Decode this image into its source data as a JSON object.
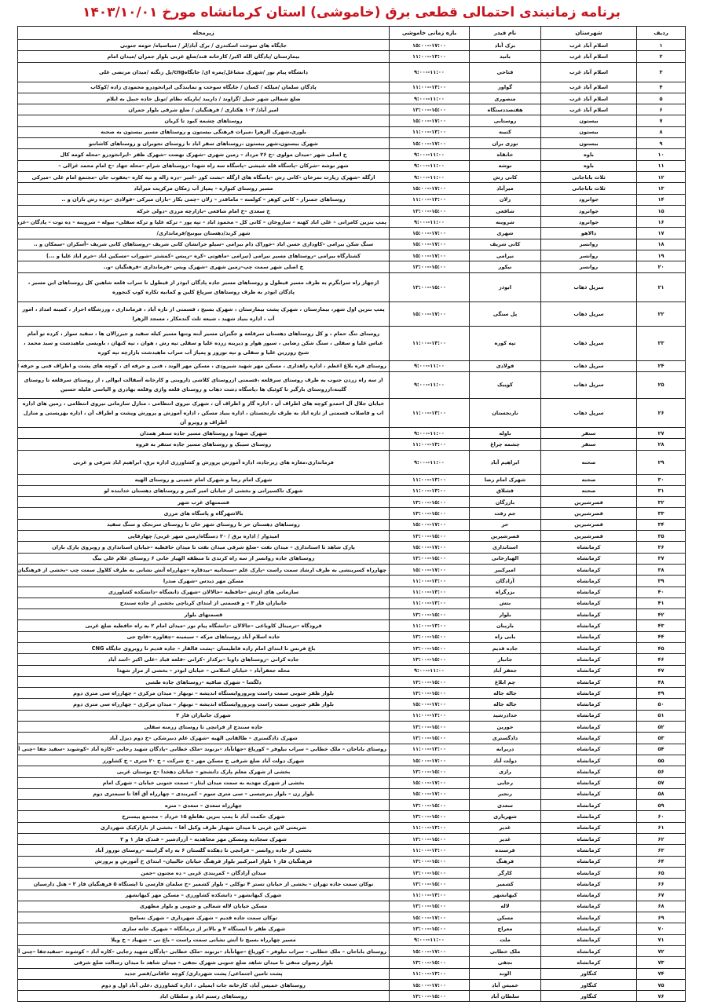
{
  "title": "برنامه زمانبندی احتمالی قطعی برق (خاموشی) استان کرمانشاه مورخ ۱۴۰۳/۱۰/۰۱",
  "columns": {
    "row": "ردیف",
    "county": "شهرستان",
    "feeder": "نام فیدر",
    "time": "بازه زمانی خاموشی",
    "area": "زیرمحله"
  },
  "title_color": "#c8141e",
  "rows": [
    [
      "۱",
      "اسلام آباد غرب",
      "برک آباد",
      "۱۵:۰۰--۱۷:۰۰",
      "جایگاه های سوخت اسکندری / برک آباد/لر / سیاسیاه/ حومه جنوبی"
    ],
    [
      "۲",
      "اسلام آباد غرب",
      "بانید",
      "۱۱:۰۰--۱۳:۰۰",
      "بیمارستان /پادگان الله اکبر/ کارخانه قند/ضلع غربی بلوار جمران /میدان امام"
    ],
    [
      "۳",
      "اسلام آباد غرب",
      "فتاحی",
      "۹:۰۰--۱۱:۰۰",
      "دانشگاه پیام نور /شهرک مشاغل/پمره ای/ جایگاهcng/پل زنگنه /میدان مرتضی علی"
    ],
    [
      "۴",
      "اسلام آباد غرب",
      "گواور",
      "۱۱:۰۰--۱۳:۰۰",
      "پادگان سلمان /میلکه / کسان / جایگاه سوخت و نمایندگی ایرانخودرو محمودی زاده /کوکاب"
    ],
    [
      "۵",
      "اسلام آباد غرب",
      "منصوری",
      "۹:۰۰--۱۱:۰۰",
      "ضلع شمالی شهر حبیل /گراوند / داربید /باریکه نظام /تونل جاده حبیل به ایلام"
    ],
    [
      "۶",
      "اسلام آباد غرب",
      "هفتصددستگاه",
      "۱۳:۰۰--۱۵:۰۰",
      "امیر آباد/ ۱۰۲ هکتاری / فرهنگیان / ضلع شرقی بلوار جمران"
    ],
    [
      "۷",
      "بیستون",
      "روستایی",
      "۱۵:۰۰--۱۷:۰۰",
      "روستاهای چشمه کبود تا کریان"
    ],
    [
      "۸",
      "بیستون",
      "کتیبه",
      "۱۱:۰۰--۱۳:۰۰",
      "بلوری،شهرک الزهرا ،میراث فرهنگی بیستون و روستاهای مسیر بیستون به صحنه"
    ],
    [
      "۹",
      "بیستون",
      "توزی بران",
      "۱۵:۰۰--۱۷:۰۰",
      "شهرک بیستون،شهر بیستون ،روستاهای سفر اباد تا روستای نجوبران و روستاهای کاشانتو"
    ],
    [
      "۱۰",
      "باوه",
      "خانقاه",
      "۹:۰۰--۱۱:۰۰",
      "خ اصلی شهر –میدان مولوی –خ ۲۶ مرداد – زمین شهری –شهرک نهضت –شهرک ظفر –ایرانخودرو –محله کومه کال"
    ],
    [
      "۱۱",
      "باوه",
      "نوشه",
      "۹:۰۰--۱۱:۰۰",
      "شهر نوشه –شرکان –پاسگاه قله شیشی –پاسگاه سه راه شهدا –روستاهای شرام –محله جهاد –خ امام محمد غزالی –"
    ],
    [
      "۱۲",
      "ثلاث باباجانی",
      "کانی رش",
      "۹:۰۰--۱۱:۰۰",
      "ازگله –شهرک زیارت تمرخان –کانی رش –پاسگاه های ازگله –بشت کور –امیر –دره زاله و تپه کاره –یعقوب جان –مجتمع امام علی –میرکی"
    ],
    [
      "۱۳",
      "ثلاث باباجانی",
      "میرآباد",
      "۱۵:۰۰--۱۷:۰۰",
      "مسیر روستای کیواره – پمپاژ آب زمکان مرکزیت میرآباد"
    ],
    [
      "۱۴",
      "جوانرود",
      "زلان",
      "۱۱:۰۰--۱۳:۰۰",
      "روستاهای جمنزار – کانی کوهر – کولسه – ماماقدر – زلان –چمی بکار –بازان میرکی –فولادی –برده رش بازان و .."
    ],
    [
      "۱۵",
      "جوانرود",
      "شافعی",
      "۱۳:۰۰--۱۵:۰۰",
      "خ سعدی –خ امام شافعی –بازارچه مرزی –دولی خرکه"
    ],
    [
      "۱۶",
      "جوانرود",
      "شروینه",
      "۹:۰۰--۱۱:۰۰",
      "پمپ بنزین کامرانی – علی اباد کهنه – ساروخان – کانی کل – محمود اباد – تپه پور – ترکه علیا و ترکه سفلی– بیوله – شروینه – ده توت – پادگان –عزیز اباد"
    ],
    [
      "۱۷",
      "دالاهو",
      "شهری",
      "۱۵:۰۰--۱۷:۰۰",
      "شهر کرند/دهستان بیونیج/فرمانداری/"
    ],
    [
      "۱۸",
      "روانسر",
      "کانی شریف",
      "۱۵:۰۰--۱۷:۰۰",
      "سنگ شکن بیرامی –کاوداری حسن اباد –خوراک دام بیرامی –سیلو جرانشان کانی شریف –روستاهای کانی شریف –آسکران –سمکان و .."
    ],
    [
      "۱۹",
      "روانسر",
      "نیرامی",
      "۱۵:۰۰--۱۷:۰۰",
      "کشتارگاه بیرامی –روستاهای مسیر نیرامی (تیرامی –ماهوتی –کره –ریبس –کمشتر –شوراب –مسکین اباد –خرم اباد علیا و ...)"
    ],
    [
      "۲۰",
      "روانسر",
      "نیکور",
      "۱۳:۰۰--۱۵:۰۰",
      "خ اصلی شهر سمت چپ–زمین شهری –شهرک ویس –فرمانداری –فرهنگیان –و.."
    ],
    [
      "۲۱",
      "سرپل ذهاب",
      "ابوذر",
      "۱۳:۰۰--۱۵:۰۰",
      "ازچهار راه سرابگرم به طرف مسیر قیطول و روستاهای مسیر جاده پادگان ابوذر از قیطول تا سراب قلعه شاهین کل روستاهای این مسیر ، پادگان ابوذر به طرف روستاهای سرپاغ کلین و کمانیه تکاره کوپ کنجوره"
    ],
    [
      "۲۲",
      "سرپل ذهاب",
      "پل سنگی",
      "۱۵:۰۰--۱۷:۰۰",
      "پمپ بنزین اول شهر، بیمارستان ، شهرک پشت بیمارستان ، شهرک بسیج ، قسمتی از تازه آباد ، فرمانداری ، ورزشگاه احرار ، کمیته امداد ، امور آب ، اداره بنیاد شهید ، شیعه ثلث گندمکار ، مسجد الزهرا"
    ],
    [
      "۲۳",
      "سرپل ذهاب",
      "تپه کوره",
      "۱۱:۰۰--۱۳:۰۰",
      "روستای تنگ حمام ، و کل روستاهای دهستان سرقلعه و جگیران مسیر آبته وتنها مسیر کیله سفید و جیرزالان ها ، سفید سوار ، کرده تو آمام عباس علیا و سفلی ، سنگ شکن رضایی ، سیور هوار و دیرینه زرده علیا و سفلی تپه رش ، هوان ، تپه کنهان ، باویسی ماهیدشت و سید محمد ، شیخ رورزین علیا و سفلی و تپه نوروز و پمپاژ آب سراب ماهیدشت بازارچه تپه کوره"
    ],
    [
      "۲۴",
      "سرپل ذهاب",
      "فولادی",
      "۹:۰۰--۱۱:۰۰",
      "روستای قره بلاغ اعظم ، اداره راهداری ، مسکن مهر شهید شیرودی ، مسکن مهر الوند ، فنی و حرفه ای ، کوچه های پشت و اطراف فنی و حرفه ای ، شهرک امام ،کل محله فولادی ،"
    ],
    [
      "۲۵",
      "سرپل ذهاب",
      "کوییک",
      "۹:۰۰--۱۱:۰۰",
      "از سه راه زردن جنوب به طرف روستای سرقلعه ،قسمتی ازروستای کلاشی داروینی و کارخانه آسفالت ابوالی ، از روستای سرقلعه تا روستای گلینه،ازروستای بازگیر تا کوئیک ها ،پاسگاه دشت ذهاب و روستای قلعه واژی وقلعه بهادری و الیاسی قلیله حسین"
    ],
    [
      "۲۶",
      "سرپل ذهاب",
      "نارنجستان",
      "۱۱:۰۰--۱۳:۰۰",
      "خیابان جلال آل احمدو کوچه های اطراف آن ، اداره گاز و اطراف آن ، شهرک نیروی انتظامی ، منازل سازمانی نیروی انتظامی ، زمین های اداره اب و فاضلاب قسمتی از تازه اباد به طرف نارنجستان ، اداره بنیاد مسکن ، اداره آموزش و پرورش وپشت و اطراف آن ، اداره بهزیستی و منازل اطراف و روبرو آن"
    ],
    [
      "۲۷",
      "سنقر",
      "باوله",
      "۹:۰۰--۱۱:۰۰",
      "شهرک شهدا و روستاهای مسیر جاده سنقر همدان"
    ],
    [
      "۲۸",
      "سنقر",
      "چشمه چراغ",
      "۱۱:۰۰--۱۳:۰۰",
      "روستای سیبک و روستاهای مسیر جاده سنقر به قروه"
    ],
    [
      "۲۹",
      "صحنه",
      "ابراهیم آباد",
      "۹:۰۰--۱۱:۰۰",
      "فرمانداری،مغازه های زیرجاده، اداره آموزش پرورش و کشاورزی اداره برق، ابراهیم اباد شرقی و غربی"
    ],
    [
      "۳۰",
      "صحنه",
      "شهرک امام رضا",
      "۱۱:۰۰--۱۳:۰۰",
      "شهرک امام رضا و شهرک امام خمینی و روستای الهیه"
    ],
    [
      "۳۱",
      "صحنه",
      "قشلاق",
      "۱۱:۰۰--۱۳:۰۰",
      "شهرک تاکسیرانی و بخشی از خیابان امیر کبیر و روستاهای دهستان خدابنده لو"
    ],
    [
      "۳۲",
      "قصرشیرین",
      "بازرگان",
      "۱۳:۰۰--۱۵:۰۰",
      "قسمتهای غرب شهر"
    ],
    [
      "۳۳",
      "قصرشیرین",
      "جم رفت",
      "۱۳:۰۰--۱۵:۰۰",
      "بالاشهرگاه و پاسگاه های مرزی"
    ],
    [
      "۳۴",
      "قصرشیرین",
      "حر",
      "۱۵:۰۰--۱۷:۰۰",
      "روستاهای دهستان حر تا روستای شهر خان تا روستای سرنجک و سنگ سفید"
    ],
    [
      "۳۵",
      "قصرشیرین",
      "قصرشیرین",
      "۱۳:۰۰--۱۵:۰۰",
      "امیدوار / اداره برق / ۲۰ دستگاه/زمین شهر غربی/ چهارقاپی"
    ],
    [
      "۳۶",
      "کرمانشاه",
      "استانداری",
      "۱۵:۰۰--۱۷:۰۰",
      "پارک شاهد تا استانداری – میدان نفت –ضلع شرقی میدان نفت تا میدان حافظیه –خیابان استانداری و روبروی پارک باران"
    ],
    [
      "۳۷",
      "کرمانشاه",
      "الهیارخانی",
      "۱۳:۰۰--۱۵:۰۰",
      "روستاهای جاده روانسر از سه راه کرندی تا منطقه الهیار خانی ۶ روستای غلام علی بیگ"
    ],
    [
      "۳۸",
      "کرمانشاه",
      "امیرکبیر",
      "۱۵:۰۰--۱۷:۰۰",
      "چهارراه کسرینشی به طرف ارشاد سمت راست –پارک علم –سبحانیه –بیدقاره –چهارراه آتش نشانی به طرف کلاول سمت چپ –بخشی از فرهنگیان فاز ۱"
    ],
    [
      "۳۹",
      "کرمانشاه",
      "آزادگان",
      "۱۱:۰۰--۱۳:۰۰",
      "مسکن مهر دیدس –شهرک صدرا"
    ],
    [
      "۴۰",
      "کرمانشاه",
      "بزرگراه",
      "۱۱:۰۰--۱۳:۰۰",
      "سازمانی های ارتش –حافظیه –جالالان –شهرک دانشگاه –دانشکده کشاورزی"
    ],
    [
      "۴۱",
      "کرمانشاه",
      "بتش",
      "۱۱:۰۰--۱۳:۰۰",
      "جانبازان فاز ۳ – و قسمتی از ابتدای کرناچی بخشی از جاده سنندج"
    ],
    [
      "۴۲",
      "کرمانشاه",
      "بلوار",
      "۱۳:۰۰--۱۵:۰۰",
      "قسمتهای بلوار"
    ],
    [
      "۴۳",
      "کرمانشاه",
      "باریبان",
      "۱۱:۰۰--۱۳:۰۰",
      "فرودگاه –ترمینال کاوباغی –جالالان –دانشگاه پیام نور –میدان امام ۲ به راه حافظیه ضلع غربی"
    ],
    [
      "۴۴",
      "کرمانشاه",
      "بابی راه",
      "۱۳:۰۰--۱۵:۰۰",
      "جاده اسلام آباد روستاهای مرکه – سیمینه –چفاوره –فاتح جی"
    ],
    [
      "۴۵",
      "کرمانشاه",
      "جاده قدیم",
      "۱۳:۰۰--۱۵:۰۰",
      "باغ فرنس تا ابتدای امام زاده فاطیسان –پشت قالقار – جاده قدیم تا روبروی جایگاه CNG"
    ],
    [
      "۴۶",
      "کرمانشاه",
      "جانباز",
      "۱۳:۰۰--۱۵:۰۰",
      "جاده کرانی –روستاهای داوبا –برکدار –کرانی –قلعه قباد –علی اکبر –اسد آباد"
    ],
    [
      "۴۷",
      "کرمانشاه",
      "جعفر آباد",
      "۹:۰۰--۱۱:۰۰",
      "محله جعفرآباد – خیابان اسلامی – خیابان ابوذر – بخشی از مزار شهدا"
    ],
    [
      "۴۸",
      "کرمانشاه",
      "چم ابلاغ",
      "۱۳:۰۰--۱۵:۰۰",
      "دلگشا – شهرک صافیه –روستاهای جاده طشی"
    ],
    [
      "۴۹",
      "کرمانشاه",
      "جاله جاله",
      "۱۳:۰۰--۱۵:۰۰",
      "بلوار ظفر جنوبی سمت راست وبروروایستگاه اندیشه – توبهار – میدان مرکزی – چهارراه سی متری دوم"
    ],
    [
      "۵۰",
      "کرمانشاه",
      "جاله جاله",
      "۱۵:۰۰--۱۷:۰۰",
      "بلوار ظفر جنوبی سمت راست وبروروایستگاه اندیشه – توبهار – میدان مرکزی – چهارراه سی متری دوم"
    ],
    [
      "۵۱",
      "کرمانشاه",
      "حدادرشید",
      "۱۱:۰۰--۱۳:۰۰",
      "شهرک جانبازان فاز ۳"
    ],
    [
      "۵۲",
      "کرمانشاه",
      "خورین",
      "۱۳:۰۰--۱۵:۰۰",
      "جاده سنندج از فرانچی تا روستای زرمنه سفلی"
    ],
    [
      "۵۳",
      "کرمانشاه",
      "دادگستری",
      "۱۳:۰۰--۱۵:۰۰",
      "شهرک دادگستری – طالقانی الهیه –شهرک علم دبیرشکی –خ دوم دیزل آباد"
    ],
    [
      "۵۴",
      "کرمانشاه",
      "دربرابه",
      "۱۱:۰۰--۱۳:۰۰",
      "روستای باباحان – ملک خطابی – سراب نیلوفر – کوریاغ –جهانآباد –بزنوند –ملک خطابی –پادگان شهید رجایی –کازه آباد –کوشوند –سفید جفا –چنی آباد"
    ],
    [
      "۵۵",
      "کرمانشاه",
      "دولت آباد",
      "۱۵:۰۰--۱۷:۰۰",
      "شهرک دولت آباد ضلع شرقی خ مسکن مهر – خ شرکت – خ ۲۰ متری – خ کشاورز"
    ],
    [
      "۵۶",
      "کرمانشاه",
      "رازی",
      "۱۳:۰۰--۱۵:۰۰",
      "بخشی از شهرک معلم پارک دانشجو – خیابان دهخدا –خ بوستان غربی"
    ],
    [
      "۵۷",
      "کرمانشاه",
      "رجایی",
      "۱۵:۰۰--۱۷:۰۰",
      "بخشی از شهرک مهدیه به سمت میدان ایثار – سمت جنوبی خیابان – شهرک امام"
    ],
    [
      "۵۸",
      "کرمانشاه",
      "رنجبر",
      "۱۵:۰۰--۱۷:۰۰",
      "بلوار زن – بلوار بیرجیسی – سی متری سوم – کمربندی – چهارراه آق آقا تا سیمتری دوم"
    ],
    [
      "۵۹",
      "کرمانشاه",
      "سعدی",
      "۱۳:۰۰--۱۵:۰۰",
      "چهارراه سعدی – سعدی – منزه"
    ],
    [
      "۶۰",
      "کرمانشاه",
      "شهریاری",
      "۱۳:۰۰--۱۵:۰۰",
      "شهرک حکمت آباد تا پمپ بنزین تقاطع ۱۵ خرداد – مجتمع بیسترخ"
    ],
    [
      "۶۱",
      "کرمانشاه",
      "غدیر",
      "۱۱:۰۰--۱۳:۰۰",
      "شریعتی لاین غربی تا میدان شهباز طرف وکیل آقا – بخشی از بازارکیک شهرداری"
    ],
    [
      "۶۲",
      "کرمانشاه",
      "غدیر",
      "۱۳:۰۰--۱۵:۰۰",
      "شهرک سجادیه ومسکن مهر مجاهدیه – آزرادشیر – قندک فاز ۱ و ۲"
    ],
    [
      "۶۳",
      "کرمانشاه",
      "فرسنده",
      "۱۱:۰۰--۱۳:۰۰",
      "بخشی از جاده روانسر – فرانچی تا دهکده گلستان ۶ به راه گرانیته –روستای نوروز آباد"
    ],
    [
      "۶۴",
      "کرمانشاه",
      "فرهنگ",
      "۱۳:۰۰--۱۵:۰۰",
      "فرهنگیان فاز ۱ بلوار امیرکبیر بلوار فرهنگ خیابان جالبیان– ابتدای خ آموزش و پرورش"
    ],
    [
      "۶۵",
      "کرمانشاه",
      "کارگر",
      "۱۳:۰۰--۱۵:۰۰",
      "میدان آزادگان – کمربندی غربی – ده مجنون –جمن"
    ],
    [
      "۶۶",
      "کرمانشاه",
      "کشمیر",
      "۱۳:۰۰--۱۵:۰۰",
      "توکان سمت جاده تهران – بخشی از خیابان تستر ۴ توکلی – بلوار کشمیر –خ سلمان فارسی تا ایستگاه ۵ فرهنگیان فاز ۲ – هتل دارسیان"
    ],
    [
      "۶۷",
      "کرمانشاه",
      "کیهانشهر",
      "۱۱:۰۰--۱۳:۰۰",
      "شهرک کیهانشهر – دانشکده کشاورزی – مسکن مهر کیهانشهر"
    ],
    [
      "۶۸",
      "کرمانشاه",
      "لاله",
      "۱۳:۰۰--۱۵:۰۰",
      "مسکن خیابان لاله شمالی و جنوبی و بلوار مطهری"
    ],
    [
      "۶۹",
      "کرمانشاه",
      "مسکن",
      "۱۵:۰۰--۱۷:۰۰",
      "توکان سمت جاده قدیم – شهرک شهرداری – شهرک تسامح"
    ],
    [
      "۷۰",
      "کرمانشاه",
      "معراج",
      "۱۳:۰۰--۱۵:۰۰",
      "شهرک ظفر تا ایستگاه ۲ و بالاتر از درمانگاه – شهرک خانه سازی"
    ],
    [
      "۷۱",
      "کرمانشاه",
      "ملت",
      "۹:۰۰--۱۱:۰۰",
      "مسیر چهارراه بسیج تا آتش نشانی سمت راست – باغ نی – شهیاد – خ ویلا"
    ],
    [
      "۷۲",
      "کرمانشاه",
      "ملک خطابی",
      "۱۵:۰۰--۱۷:۰۰",
      "روستای باباحان – ملک خطابی – سراب نیلوفر – کوریاغ –جهانآباد –بزنوند –ملک خطابی –پادگان شهید رجایی –کازه آباد – کوشوند –سفیدجفا –چنی آباد"
    ],
    [
      "۷۳",
      "کرمانشاه",
      "نجفی",
      "۱۳:۰۰--۱۵:۰۰",
      "بلوار رضوان منفی تا میدان شاهد ضلع جنوبی شهرک نجفی – میدان شاهد تا میدان رسالت ضلع شرقی"
    ],
    [
      "۷۴",
      "کنگاور",
      "الوند",
      "۱۱:۰۰--۱۳:۰۰",
      "پشت تامین اجتماعی/ پشت شهرداری/ کوچه خاقانی/قصر جدید"
    ],
    [
      "۷۵",
      "کنگاور",
      "خمیس آباد",
      "۱۵:۰۰--۱۷:۰۰",
      "روستاهای خمیس آباد، کارخانه جات ایمیلی ، اداره کشاورزی ،علی آباد اول و دوم"
    ],
    [
      "۷۶",
      "کنگاور",
      "سلطان آباد",
      "۱۳:۰۰--۱۵:۰۰",
      "روستاهای رستم اباد و سلطان اباد"
    ]
  ]
}
